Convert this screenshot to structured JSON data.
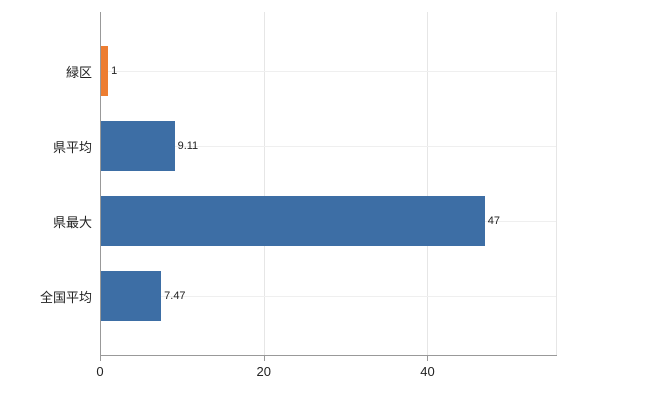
{
  "chart_data": {
    "type": "bar",
    "orientation": "horizontal",
    "title": "",
    "xlabel": "",
    "ylabel": "",
    "categories": [
      "緑区",
      "県平均",
      "県最大",
      "全国平均"
    ],
    "values": [
      1,
      9.11,
      47,
      7.47
    ],
    "value_labels": [
      "1",
      "9.11",
      "47",
      "7.47"
    ],
    "bar_colors": [
      "#ED7D31",
      "#3D6EA5",
      "#3D6EA5",
      "#3D6EA5"
    ],
    "x_ticks": [
      0,
      20,
      40
    ],
    "x_tick_labels": [
      "0",
      "20",
      "40"
    ],
    "xlim": [
      0,
      55.7
    ],
    "grid": "vertical-at-ticks-and-category-lines",
    "legend": "none",
    "background": "#ffffff",
    "axis_color": "#999999"
  }
}
